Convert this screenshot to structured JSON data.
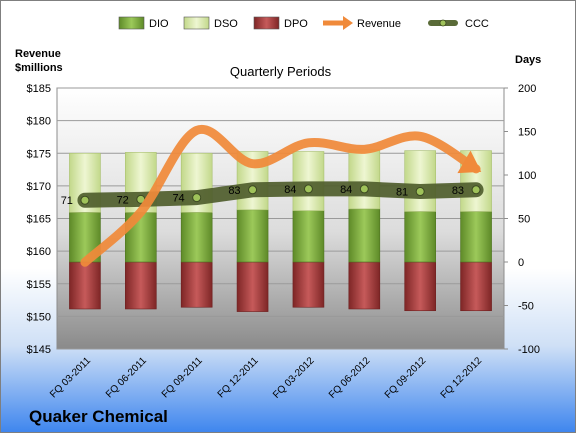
{
  "company": "Quaker Chemical",
  "chart_data": {
    "type": "bar",
    "title": "Quarterly Periods",
    "left_axis": {
      "label_line1": "Revenue",
      "label_line2": "$millions",
      "min": 145,
      "max": 185,
      "step": 5,
      "prefix": "$"
    },
    "right_axis": {
      "label": "Days",
      "min": -100,
      "max": 200,
      "step": 50
    },
    "categories": [
      "FQ 03-2011",
      "FQ 06-2011",
      "FQ 09-2011",
      "FQ 12-2011",
      "FQ 03-2012",
      "FQ 06-2012",
      "FQ 09-2012",
      "FQ 12-2012"
    ],
    "legend": [
      {
        "name": "DIO",
        "color": "#77a33a"
      },
      {
        "name": "DSO",
        "color": "#d7e8a8"
      },
      {
        "name": "DPO",
        "color": "#a33c3c"
      },
      {
        "name": "Revenue",
        "color": "#f08a3a"
      },
      {
        "name": "CCC",
        "color": "#5a6b38"
      }
    ],
    "series": [
      {
        "name": "DIO",
        "axis": "right",
        "values": [
          57,
          57,
          57,
          60,
          59,
          61,
          58,
          58
        ]
      },
      {
        "name": "DSO",
        "axis": "right",
        "values": [
          68,
          69,
          68,
          67,
          68,
          68,
          70,
          70
        ]
      },
      {
        "name": "DPO",
        "axis": "right",
        "values": [
          -54,
          -54,
          -52,
          -57,
          -52,
          -54,
          -56,
          -56
        ]
      },
      {
        "name": "Revenue",
        "axis": "left",
        "values": [
          158.3,
          166,
          178.5,
          173.4,
          176.6,
          175.6,
          177.6,
          172.6
        ]
      },
      {
        "name": "CCC",
        "axis": "right",
        "values": [
          71,
          72,
          74,
          83,
          84,
          84,
          81,
          83
        ]
      }
    ],
    "ccc_labels": [
      "71",
      "72",
      "74",
      "83",
      "84",
      "84",
      "81",
      "83"
    ],
    "grid": true,
    "legend_position": "top"
  }
}
